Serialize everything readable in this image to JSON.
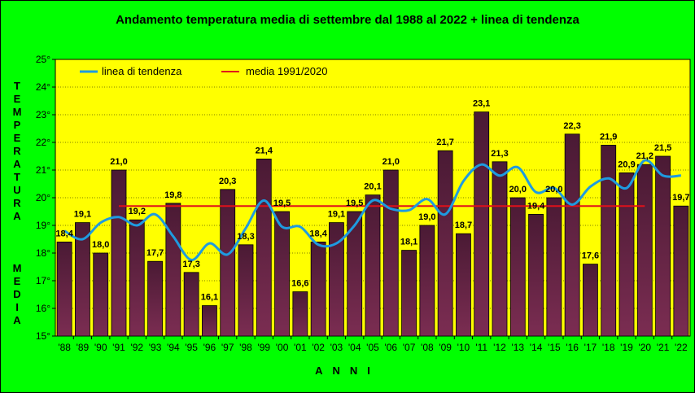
{
  "chart_data": {
    "type": "bar",
    "title": "Andamento temperatura media di settembre dal 1988 al 2022 + linea di tendenza",
    "ylabel_top": "TEMPERATURA",
    "ylabel_bottom": "MEDIA",
    "xlabel": "ANNI",
    "ylim": [
      15,
      25
    ],
    "yticks": [
      "15°",
      "16°",
      "17°",
      "18°",
      "19°",
      "20°",
      "21°",
      "22°",
      "23°",
      "24°",
      "25°"
    ],
    "categories": [
      "'88",
      "'89",
      "'90",
      "'91",
      "'92",
      "'93",
      "'94",
      "'95",
      "'96",
      "'97",
      "'98",
      "'99",
      "'00",
      "'01",
      "'02",
      "'03",
      "'04",
      "'05",
      "'06",
      "'07",
      "'08",
      "'09",
      "'10",
      "'11",
      "'12",
      "'13",
      "'14",
      "'15",
      "'16",
      "'17",
      "'18",
      "'19",
      "'20",
      "'21",
      "'22"
    ],
    "values": [
      18.4,
      19.1,
      18.0,
      21.0,
      19.2,
      17.7,
      19.8,
      17.3,
      16.1,
      20.3,
      18.3,
      21.4,
      19.5,
      16.6,
      18.4,
      19.1,
      19.5,
      20.1,
      21.0,
      18.1,
      19.0,
      21.7,
      18.7,
      23.1,
      21.3,
      20.0,
      19.4,
      20.0,
      22.3,
      17.6,
      21.9,
      20.9,
      21.2,
      21.5,
      19.7
    ],
    "value_labels": [
      "18,4",
      "19,1",
      "18,0",
      "21,0",
      "19,2",
      "17,7",
      "19,8",
      "17,3",
      "16,1",
      "20,3",
      "18,3",
      "21,4",
      "19,5",
      "16,6",
      "18,4",
      "19,1",
      "19,5",
      "20,1",
      "21,0",
      "18,1",
      "19,0",
      "21,7",
      "18,7",
      "23,1",
      "21,3",
      "20,0",
      "19,4",
      "20,0",
      "22,3",
      "17,6",
      "21,9",
      "20,9",
      "21,2",
      "21,5",
      "19,7"
    ],
    "series": [
      {
        "name": "linea di tendenza",
        "color": "#1e9be0",
        "values": [
          18.8,
          18.5,
          19.1,
          19.3,
          19.0,
          19.4,
          18.6,
          17.75,
          18.35,
          17.95,
          18.9,
          19.9,
          18.95,
          18.95,
          18.3,
          18.35,
          19.0,
          19.9,
          19.6,
          19.55,
          19.95,
          19.4,
          20.6,
          21.2,
          20.8,
          21.1,
          20.2,
          20.35,
          19.75,
          20.4,
          20.7,
          20.35,
          21.35,
          20.8,
          20.8
        ]
      },
      {
        "name": "media 1991/2020",
        "color": "#e0101a",
        "value": 19.7,
        "range": [
          "'91",
          "'20"
        ]
      }
    ],
    "legend": [
      "linea di tendenza",
      "media 1991/2020"
    ],
    "legend_position": "top-left",
    "grid": true,
    "bar_color": "#7b2d52",
    "plot_background": "#ffff00",
    "page_background": "#00ff00"
  }
}
